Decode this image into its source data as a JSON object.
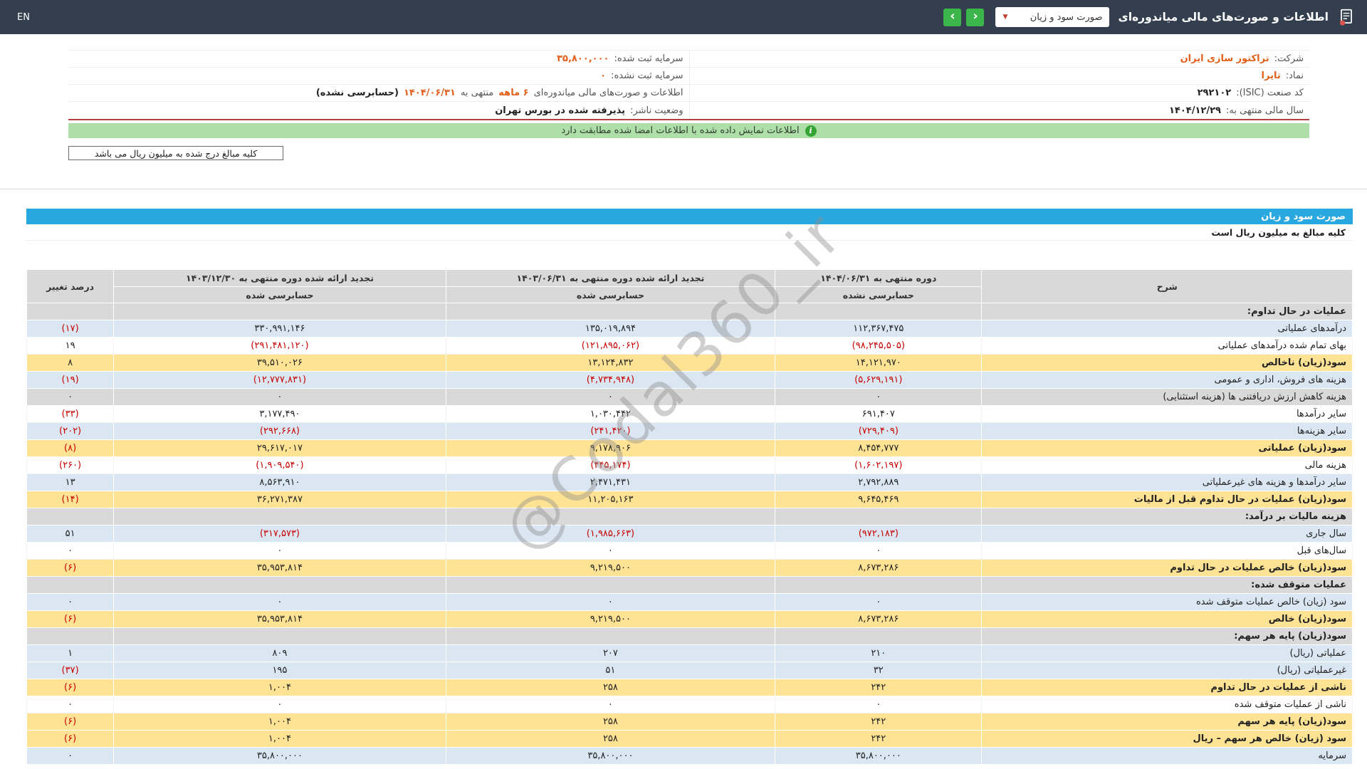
{
  "topbar": {
    "title": "اطلاعات و صورت‌های مالی میاندوره‌ای",
    "report_select": "صورت سود و زیان",
    "nav_prev": "‹",
    "nav_next": "›",
    "lang": "EN"
  },
  "company_info": {
    "rows_right": [
      {
        "parts": [
          {
            "t": "شرکت:",
            "s": "label"
          },
          {
            "t": "تراکتور سازی ایران",
            "s": "accent"
          }
        ]
      },
      {
        "parts": [
          {
            "t": "نماد:",
            "s": "label"
          },
          {
            "t": "تایرا",
            "s": "accent"
          }
        ]
      },
      {
        "parts": [
          {
            "t": "کد صنعت (ISIC):",
            "s": "label"
          },
          {
            "t": "۲۹۲۱۰۲",
            "s": "value"
          }
        ]
      },
      {
        "parts": [
          {
            "t": "سال مالی منتهی به:",
            "s": "label"
          },
          {
            "t": "۱۴۰۴/۱۲/۲۹",
            "s": "value"
          }
        ]
      }
    ],
    "rows_left": [
      {
        "parts": [
          {
            "t": "سرمایه ثبت شده:",
            "s": "label"
          },
          {
            "t": "۳۵,۸۰۰,۰۰۰",
            "s": "accent"
          }
        ]
      },
      {
        "parts": [
          {
            "t": "سرمایه ثبت نشده:",
            "s": "label"
          },
          {
            "t": "۰",
            "s": "accent"
          }
        ]
      },
      {
        "parts": [
          {
            "t": "اطلاعات و صورت‌های مالی میاندوره‌ای",
            "s": "label"
          },
          {
            "t": "۶ ماهه",
            "s": "accent"
          },
          {
            "t": "منتهی به",
            "s": "label"
          },
          {
            "t": "۱۴۰۴/۰۶/۳۱",
            "s": "accent"
          },
          {
            "t": "(حسابرسی نشده)",
            "s": "value"
          }
        ]
      },
      {
        "parts": [
          {
            "t": "وضعیت ناشر:",
            "s": "label"
          },
          {
            "t": "پذیرفته شده در بورس تهران",
            "s": "value"
          }
        ]
      }
    ]
  },
  "banner": {
    "icon": "i",
    "text": "اطلاعات نمایش داده شده با اطلاعات امضا شده مطابقت دارد"
  },
  "unit_note_box": "کلیه مبالغ درج شده به میلیون ریال می باشد",
  "statement": {
    "title": "صورت سود و زیان",
    "unit_note": "کلیه مبالغ به میلیون ریال است",
    "table": {
      "headers": {
        "desc": "شرح",
        "periods": [
          {
            "label": "دوره منتهی به ۱۴۰۴/۰۶/۳۱",
            "audit": "حسابرسی نشده"
          },
          {
            "label": "تجدید ارائه شده دوره منتهی به ۱۴۰۳/۰۶/۳۱",
            "audit": "حسابرسی شده"
          },
          {
            "label": "تجدید ارائه شده دوره منتهی به ۱۴۰۳/۱۲/۳۰",
            "audit": "حسابرسی شده"
          }
        ],
        "change": "درصد تغییر"
      },
      "rows": [
        {
          "label": "عملیات در حال تداوم:",
          "style": "section"
        },
        {
          "label": "درآمدهای عملیاتی",
          "style": "blue",
          "values": [
            "۱۱۲,۳۶۷,۴۷۵",
            "۱۳۵,۰۱۹,۸۹۴",
            "۳۳۰,۹۹۱,۱۴۶"
          ],
          "change": "(۱۷)"
        },
        {
          "label": "بهای تمام شده درآمدهای عملیاتی",
          "style": "white",
          "values": [
            "(۹۸,۲۴۵,۵۰۵)",
            "(۱۲۱,۸۹۵,۰۶۲)",
            "(۲۹۱,۴۸۱,۱۲۰)"
          ],
          "change": "۱۹"
        },
        {
          "label": "سود(زیان) ناخالص",
          "style": "yellow",
          "values": [
            "۱۴,۱۲۱,۹۷۰",
            "۱۳,۱۲۴,۸۳۲",
            "۳۹,۵۱۰,۰۲۶"
          ],
          "change": "۸"
        },
        {
          "label": "هزینه های فروش، اداری و عمومی",
          "style": "blue",
          "values": [
            "(۵,۶۲۹,۱۹۱)",
            "(۴,۷۳۴,۹۴۸)",
            "(۱۲,۷۷۷,۸۳۱)"
          ],
          "change": "(۱۹)"
        },
        {
          "label": "هزینه کاهش ارزش دریافتنی ها (هزینه استثنایی)",
          "style": "gray",
          "values": [
            "۰",
            "۰",
            "۰"
          ],
          "change": "۰"
        },
        {
          "label": "سایر درآمدها",
          "style": "white",
          "values": [
            "۶۹۱,۴۰۷",
            "۱,۰۳۰,۴۴۲",
            "۳,۱۷۷,۴۹۰"
          ],
          "change": "(۳۳)"
        },
        {
          "label": "سایر هزینه‌ها",
          "style": "blue",
          "values": [
            "(۷۲۹,۴۰۹)",
            "(۲۴۱,۴۲۰)",
            "(۲۹۲,۶۶۸)"
          ],
          "change": "(۲۰۲)"
        },
        {
          "label": "سود(زیان) عملیاتی",
          "style": "yellow",
          "values": [
            "۸,۴۵۴,۷۷۷",
            "۹,۱۷۸,۹۰۶",
            "۲۹,۶۱۷,۰۱۷"
          ],
          "change": "(۸)"
        },
        {
          "label": "هزینه مالی",
          "style": "white",
          "values": [
            "(۱,۶۰۲,۱۹۷)",
            "(۴۴۵,۱۷۴)",
            "(۱,۹۰۹,۵۴۰)"
          ],
          "change": "(۲۶۰)"
        },
        {
          "label": "سایر درآمدها و هزینه های غیرعملیاتی",
          "style": "blue",
          "values": [
            "۲,۷۹۲,۸۸۹",
            "۲,۴۷۱,۴۳۱",
            "۸,۵۶۳,۹۱۰"
          ],
          "change": "۱۳"
        },
        {
          "label": "سود(زیان) عملیات در حال تداوم قبل از مالیات",
          "style": "yellow",
          "values": [
            "۹,۶۴۵,۴۶۹",
            "۱۱,۲۰۵,۱۶۳",
            "۳۶,۲۷۱,۳۸۷"
          ],
          "change": "(۱۴)"
        },
        {
          "label": "هزینه مالیات بر درآمد:",
          "style": "section"
        },
        {
          "label": "سال جاری",
          "style": "blue",
          "values": [
            "(۹۷۲,۱۸۳)",
            "(۱,۹۸۵,۶۶۳)",
            "(۳۱۷,۵۷۳)"
          ],
          "change": "۵۱"
        },
        {
          "label": "سال‌های قبل",
          "style": "white",
          "values": [
            "۰",
            "۰",
            "۰"
          ],
          "change": "۰"
        },
        {
          "label": "سود(زیان) خالص عملیات در حال تداوم",
          "style": "yellow",
          "values": [
            "۸,۶۷۳,۲۸۶",
            "۹,۲۱۹,۵۰۰",
            "۳۵,۹۵۳,۸۱۴"
          ],
          "change": "(۶)"
        },
        {
          "label": "عملیات متوقف شده:",
          "style": "section"
        },
        {
          "label": "سود (زیان) خالص عملیات متوقف شده",
          "style": "blue",
          "values": [
            "۰",
            "۰",
            "۰"
          ],
          "change": "۰"
        },
        {
          "label": "سود(زیان) خالص",
          "style": "yellow",
          "values": [
            "۸,۶۷۳,۲۸۶",
            "۹,۲۱۹,۵۰۰",
            "۳۵,۹۵۳,۸۱۴"
          ],
          "change": "(۶)"
        },
        {
          "label": "سود(زیان) پایه هر سهم:",
          "style": "section"
        },
        {
          "label": "عملیاتی (ریال)",
          "style": "blue",
          "values": [
            "۲۱۰",
            "۲۰۷",
            "۸۰۹"
          ],
          "change": "۱"
        },
        {
          "label": "غیرعملیاتی (ریال)",
          "style": "blue",
          "values": [
            "۳۲",
            "۵۱",
            "۱۹۵"
          ],
          "change": "(۳۷)"
        },
        {
          "label": "ناشی از عملیات در حال تداوم",
          "style": "yellow",
          "values": [
            "۲۴۲",
            "۲۵۸",
            "۱,۰۰۴"
          ],
          "change": "(۶)"
        },
        {
          "label": "ناشی از عملیات متوقف شده",
          "style": "white",
          "values": [
            "۰",
            "۰",
            "۰"
          ],
          "change": "۰"
        },
        {
          "label": "سود(زیان) پایه هر سهم",
          "style": "yellow",
          "values": [
            "۲۴۲",
            "۲۵۸",
            "۱,۰۰۴"
          ],
          "change": "(۶)"
        },
        {
          "label": "سود (زیان) خالص هر سهم – ریال",
          "style": "yellow",
          "values": [
            "۲۴۲",
            "۲۵۸",
            "۱,۰۰۴"
          ],
          "change": "(۶)"
        },
        {
          "label": "سرمایه",
          "style": "blue",
          "values": [
            "۳۵,۸۰۰,۰۰۰",
            "۳۵,۸۰۰,۰۰۰",
            "۳۵,۸۰۰,۰۰۰"
          ],
          "change": "۰"
        }
      ]
    }
  },
  "watermark": "@Codal360_ir",
  "colors": {
    "topbar_bg": "#333f4e",
    "accent": "#e2601b",
    "negative": "#c80000",
    "blue_bar": "#29a7df",
    "banner_bg": "#aedfa8",
    "banner_icon": "#35a435",
    "row_blue": "#dbe6f3",
    "row_yellow": "#ffe395",
    "row_gray": "#d9d9d9",
    "header_gray": "#d9d9d9",
    "nav_green": "#3cb54a",
    "red_divider": "#b0413e",
    "select_caret": "#c43e2f"
  }
}
